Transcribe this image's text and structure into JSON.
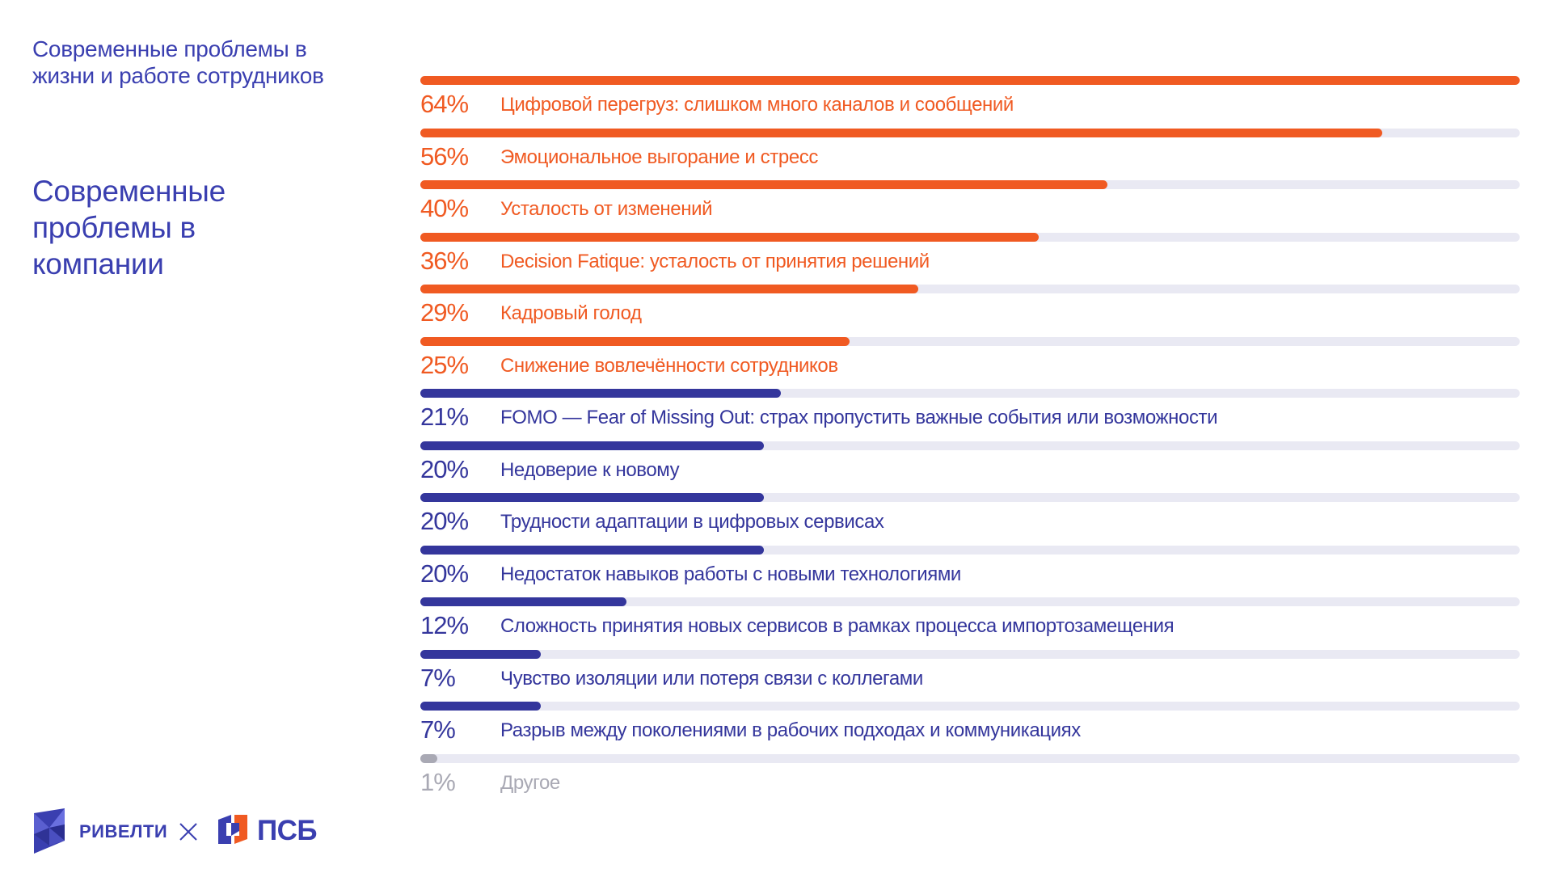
{
  "sidebar": {
    "subtitle_life_work": "Современные проблемы в жизни и работе сотрудников",
    "subtitle_company": "Современные проблемы в компании"
  },
  "colors": {
    "primary_orange": "#f05a22",
    "primary_blue": "#34369c",
    "muted_gray": "#a9a9b4",
    "track": "#e9e9f3",
    "heading_blue": "#3a3fb0"
  },
  "chart_data": {
    "type": "bar",
    "orientation": "horizontal",
    "title": "Современные проблемы в компании",
    "xlim": [
      0,
      64
    ],
    "categories": [
      "Цифровой перегруз: слишком много каналов и сообщений",
      "Эмоциональное выгорание и стресс",
      "Усталость от изменений",
      "Decision Fatique:  усталость от принятия решений",
      "Кадровый голод",
      "Снижение вовлечённости сотрудников",
      "FOMO — Fear of  Missing Out: страх пропустить важные события или возможности",
      "Недоверие к новому",
      "Трудности адаптации в цифровых сервисах",
      "Недостаток навыков работы с новыми технологиями",
      "Сложность принятия новых сервисов в рамках процесса импортозамещения",
      "Чувство изоляции или потеря связи с коллегами",
      "Разрыв между поколениями в рабочих подходах и коммуникациях",
      "Другое"
    ],
    "values": [
      64,
      56,
      40,
      36,
      29,
      25,
      21,
      20,
      20,
      20,
      12,
      7,
      7,
      1
    ],
    "value_labels": [
      "64%",
      "56%",
      "40%",
      "36%",
      "29%",
      "25%",
      "21%",
      "20%",
      "20%",
      "20%",
      "12%",
      "7%",
      "7%",
      "1%"
    ],
    "groups": [
      "orange",
      "orange",
      "orange",
      "orange",
      "orange",
      "orange",
      "blue",
      "blue",
      "blue",
      "blue",
      "blue",
      "blue",
      "blue",
      "gray"
    ]
  },
  "footer": {
    "brand_left": "РИВЕЛТИ",
    "brand_right": "ПСБ",
    "logo_left_icon": "revelty-cube-logo",
    "separator_icon": "cross-icon",
    "logo_right_icon": "psb-logo"
  }
}
